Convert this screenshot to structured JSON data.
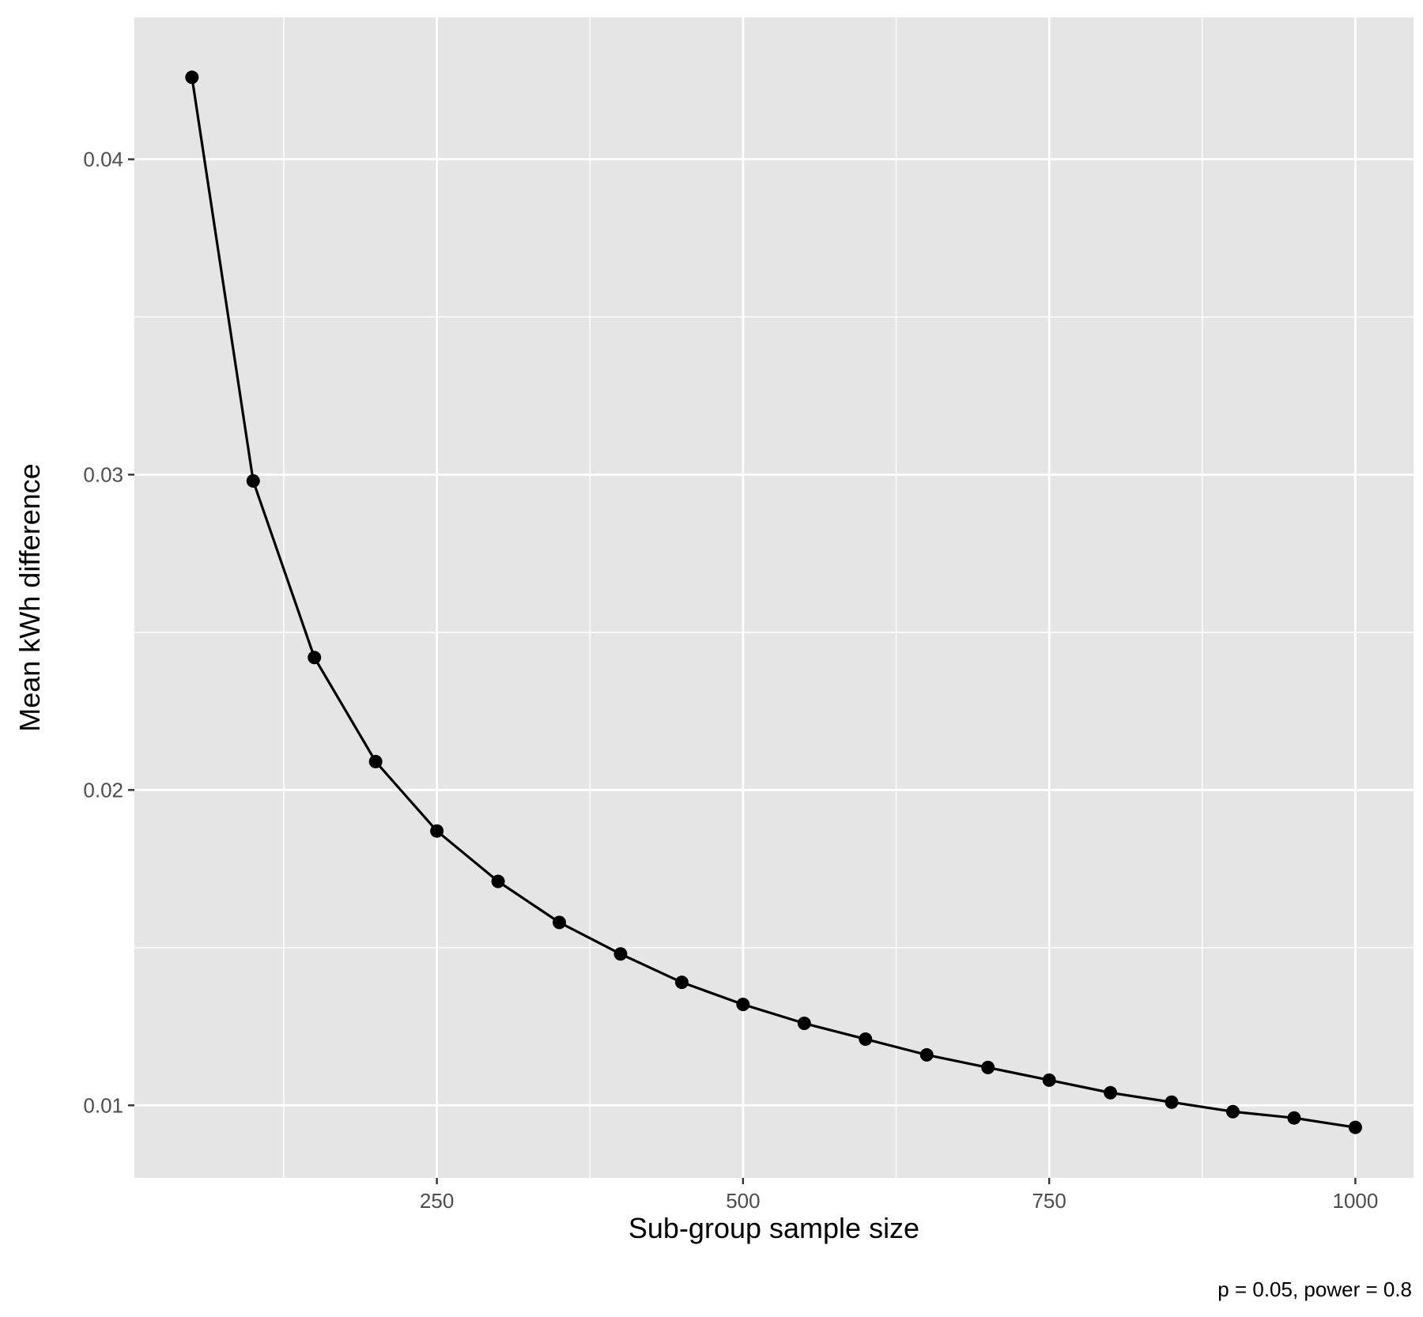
{
  "chart_data": {
    "type": "line",
    "markers": true,
    "xlabel": "Sub-group sample size",
    "ylabel": "Mean kWh difference",
    "caption": "p = 0.05, power = 0.8",
    "xlim": [
      3,
      1047.5
    ],
    "ylim": [
      0.0077,
      0.0445
    ],
    "x_major_ticks": [
      250,
      500,
      750,
      1000
    ],
    "x_minor_ticks": [
      125,
      375,
      625,
      875
    ],
    "y_major_ticks": [
      0.01,
      0.02,
      0.03,
      0.04
    ],
    "y_minor_ticks": [
      0.015,
      0.025,
      0.035
    ],
    "x_tick_labels": [
      "250",
      "500",
      "750",
      "1000"
    ],
    "y_tick_labels": [
      "0.01",
      "0.02",
      "0.03",
      "0.04"
    ],
    "grid": true,
    "x": [
      50,
      100,
      150,
      200,
      250,
      300,
      350,
      400,
      450,
      500,
      550,
      600,
      650,
      700,
      750,
      800,
      850,
      900,
      950,
      1000
    ],
    "y": [
      0.0426,
      0.0298,
      0.0242,
      0.0209,
      0.0187,
      0.0171,
      0.0158,
      0.0148,
      0.0139,
      0.0132,
      0.0126,
      0.0121,
      0.0116,
      0.0112,
      0.0108,
      0.0104,
      0.0101,
      0.0098,
      0.0096,
      0.0093
    ],
    "colors": {
      "panel": "#e5e5e5",
      "grid": "#ffffff",
      "line": "#000000",
      "points": "#000000"
    }
  }
}
